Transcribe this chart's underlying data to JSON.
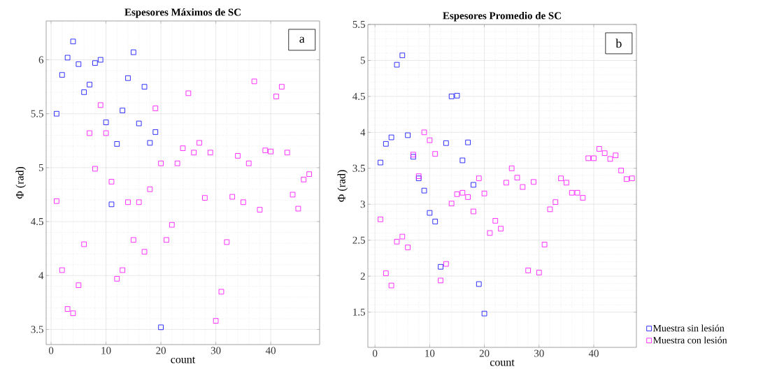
{
  "chart_data": [
    {
      "type": "scatter",
      "title": "Espesores Máximos de SC",
      "xlabel": "count",
      "ylabel": "Φ (rad)",
      "annotations": [
        "a"
      ],
      "grid": true,
      "marker": "square",
      "xlim": [
        -0.9,
        48.9
      ],
      "ylim": [
        3.36,
        6.36
      ],
      "xticks": [
        0,
        10,
        20,
        30,
        40
      ],
      "yticks": [
        3.5,
        4,
        4.5,
        5,
        5.5,
        6
      ],
      "series": [
        {
          "color": "#0000ff",
          "x": [
            1,
            2,
            3,
            4,
            5,
            6,
            7,
            8,
            9,
            10,
            11,
            12,
            13,
            14,
            15,
            16,
            17,
            18,
            19,
            20
          ],
          "values": [
            5.5,
            5.86,
            6.02,
            6.17,
            5.96,
            5.7,
            5.77,
            5.97,
            6.0,
            5.42,
            4.66,
            5.22,
            5.53,
            5.83,
            6.07,
            5.41,
            5.75,
            5.23,
            5.33,
            3.52
          ]
        },
        {
          "color": "#ff00ff",
          "x": [
            1,
            2,
            3,
            4,
            5,
            6,
            7,
            8,
            9,
            10,
            11,
            12,
            13,
            14,
            15,
            16,
            17,
            18,
            19,
            20,
            21,
            22,
            23,
            24,
            25,
            26,
            27,
            28,
            29,
            30,
            31,
            32,
            33,
            34,
            35,
            36,
            37,
            38,
            39,
            40,
            41,
            42,
            43,
            44,
            45,
            46,
            47
          ],
          "values": [
            4.69,
            4.05,
            3.69,
            3.65,
            3.91,
            4.29,
            5.32,
            4.99,
            5.58,
            5.32,
            4.87,
            3.97,
            4.05,
            4.68,
            4.33,
            4.68,
            4.22,
            4.8,
            5.55,
            5.04,
            4.33,
            4.47,
            5.04,
            5.18,
            5.69,
            5.14,
            5.23,
            4.72,
            5.14,
            3.58,
            3.85,
            4.31,
            4.73,
            5.11,
            4.68,
            5.04,
            5.8,
            4.61,
            5.16,
            5.15,
            5.66,
            5.75,
            5.14,
            4.75,
            4.62,
            4.89,
            4.94
          ]
        }
      ]
    },
    {
      "type": "scatter",
      "title": "Espesores Promedio de SC",
      "xlabel": "count",
      "ylabel": "Φ (rad)",
      "annotations": [
        "b"
      ],
      "grid": true,
      "marker": "square",
      "legend": "bottom right",
      "xlim": [
        -1.3,
        47.8
      ],
      "ylim": [
        1.01,
        5.5
      ],
      "xticks": [
        0,
        10,
        20,
        30,
        40
      ],
      "yticks": [
        1.5,
        2,
        2.5,
        3,
        3.5,
        4,
        4.5,
        5,
        5.5
      ],
      "series": [
        {
          "name": "Muestra sin lesión",
          "color": "#0000ff",
          "x": [
            1,
            2,
            3,
            4,
            5,
            6,
            7,
            8,
            9,
            10,
            11,
            12,
            13,
            14,
            15,
            16,
            17,
            18,
            19,
            20
          ],
          "values": [
            3.58,
            3.84,
            3.93,
            4.94,
            5.07,
            3.96,
            3.66,
            3.36,
            3.19,
            2.88,
            2.76,
            2.13,
            3.85,
            4.5,
            4.51,
            3.61,
            3.86,
            3.27,
            1.89,
            1.48
          ]
        },
        {
          "name": "Muestra con lesión",
          "color": "#ff00ff",
          "x": [
            1,
            2,
            3,
            4,
            5,
            6,
            7,
            8,
            9,
            10,
            11,
            12,
            13,
            14,
            15,
            16,
            17,
            18,
            19,
            20,
            21,
            22,
            23,
            24,
            25,
            26,
            27,
            28,
            29,
            30,
            31,
            32,
            33,
            34,
            35,
            36,
            37,
            38,
            39,
            40,
            41,
            42,
            43,
            44,
            45,
            46,
            47
          ],
          "values": [
            2.79,
            2.04,
            1.87,
            2.48,
            2.55,
            2.4,
            3.69,
            3.39,
            4.0,
            3.89,
            3.7,
            1.94,
            2.17,
            3.01,
            3.14,
            3.16,
            3.1,
            2.9,
            3.36,
            3.15,
            2.6,
            2.77,
            2.66,
            3.3,
            3.5,
            3.37,
            3.24,
            2.08,
            3.31,
            2.05,
            2.44,
            2.93,
            3.03,
            3.36,
            3.3,
            3.16,
            3.16,
            3.09,
            3.64,
            3.64,
            3.77,
            3.71,
            3.63,
            3.68,
            3.47,
            3.35,
            3.36
          ]
        }
      ]
    }
  ]
}
